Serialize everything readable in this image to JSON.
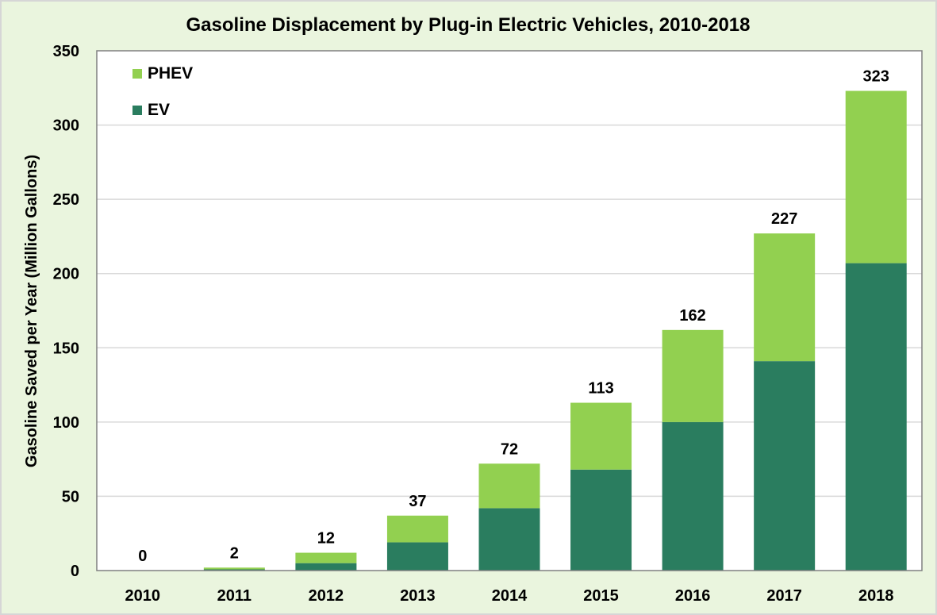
{
  "chart_data": {
    "type": "bar",
    "stacked": true,
    "title": "Gasoline Displacement by Plug-in Electric Vehicles, 2010-2018",
    "xlabel": "",
    "ylabel": "Gasoline Saved per Year (Million Gallons)",
    "ylim": [
      0,
      350
    ],
    "yticks": [
      0,
      50,
      100,
      150,
      200,
      250,
      300,
      350
    ],
    "grid": true,
    "legend_position": "top-left",
    "categories": [
      "2010",
      "2011",
      "2012",
      "2013",
      "2014",
      "2015",
      "2016",
      "2017",
      "2018"
    ],
    "series": [
      {
        "name": "EV",
        "color": "#2A7D5F",
        "values": [
          0,
          0.8,
          5,
          19,
          42,
          68,
          100,
          141,
          207
        ]
      },
      {
        "name": "PHEV",
        "color": "#92D050",
        "values": [
          0,
          1.2,
          7,
          18,
          30,
          45,
          62,
          86,
          116
        ]
      }
    ],
    "legend_order": [
      "PHEV",
      "EV"
    ],
    "totals": [
      0,
      2,
      12,
      37,
      72,
      113,
      162,
      227,
      323
    ],
    "total_labels": [
      "0",
      "2",
      "12",
      "37",
      "72",
      "113",
      "162",
      "227",
      "323"
    ],
    "colors": {
      "background": "#EAF5DE",
      "plot_background": "#FFFFFF",
      "gridline": "#D9D9D9",
      "axis": "#808080"
    }
  }
}
